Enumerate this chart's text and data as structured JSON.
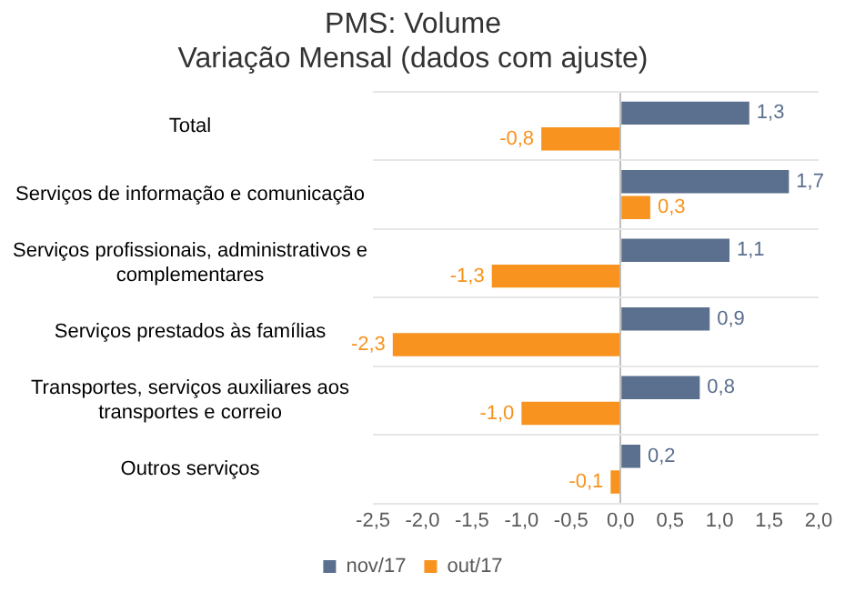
{
  "chart_data": {
    "type": "bar",
    "orientation": "horizontal",
    "title": "PMS: Volume",
    "subtitle": "Variação Mensal (dados com ajuste)",
    "categories": [
      "Total",
      "Serviços de informação e comunicação",
      "Serviços profissionais, administrativos e complementares",
      "Serviços prestados às famílias",
      "Transportes, serviços auxiliares aos transportes e correio",
      "Outros serviços"
    ],
    "series": [
      {
        "name": "nov/17",
        "color": "#5b6f8e",
        "values": [
          1.3,
          1.7,
          1.1,
          0.9,
          0.8,
          0.2
        ],
        "value_labels": [
          "1,3",
          "1,7",
          "1,1",
          "0,9",
          "0,8",
          "0,2"
        ]
      },
      {
        "name": "out/17",
        "color": "#f7931e",
        "values": [
          -0.8,
          0.3,
          -1.3,
          -2.3,
          -1.0,
          -0.1
        ],
        "value_labels": [
          "-0,8",
          "0,3",
          "-1,3",
          "-2,3",
          "-1,0",
          "-0,1"
        ]
      }
    ],
    "xlim": [
      -2.5,
      2.0
    ],
    "xticks": [
      {
        "value": -2.5,
        "label": "-2,5"
      },
      {
        "value": -2.0,
        "label": "-2,0"
      },
      {
        "value": -1.5,
        "label": "-1,5"
      },
      {
        "value": -1.0,
        "label": "-1,0"
      },
      {
        "value": -0.5,
        "label": "-0,5"
      },
      {
        "value": 0,
        "label": "0,0"
      },
      {
        "value": 0.5,
        "label": "0,5"
      },
      {
        "value": 1.0,
        "label": "1,0"
      },
      {
        "value": 1.5,
        "label": "1,5"
      },
      {
        "value": 2.0,
        "label": "2,0"
      }
    ],
    "grid": "y",
    "legend": "bottom"
  }
}
